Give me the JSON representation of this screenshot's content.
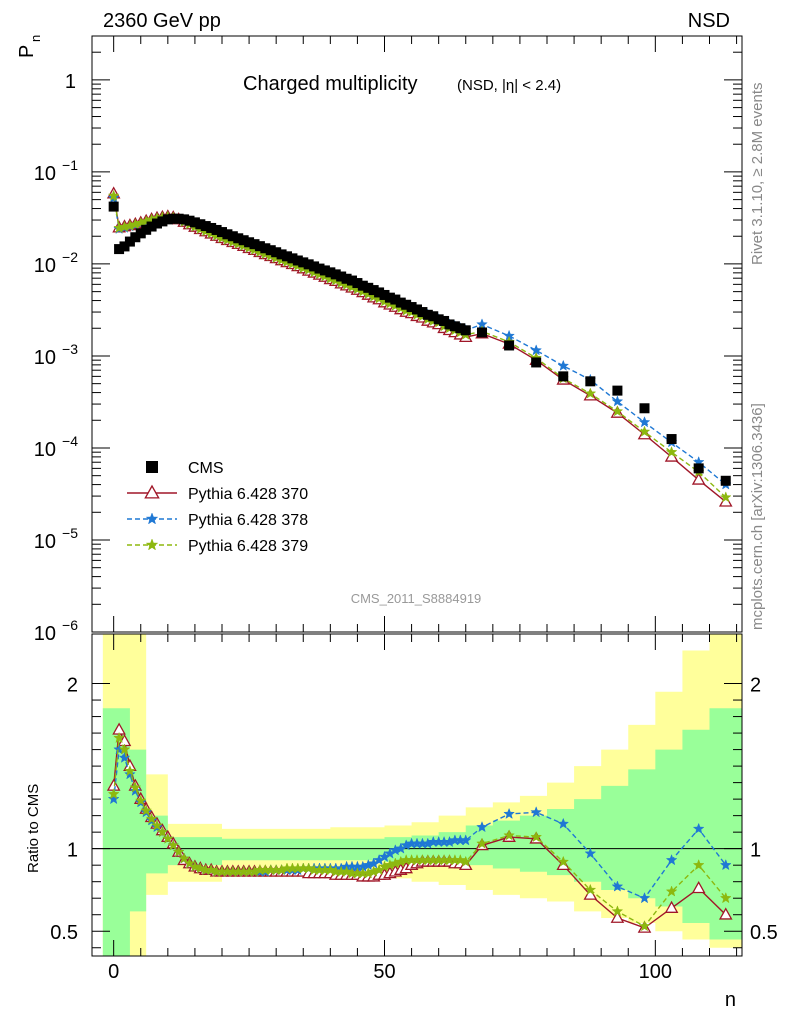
{
  "header": {
    "left": "2360 GeV pp",
    "right": "NSD"
  },
  "side_text": {
    "rivet": "Rivet 3.1.10, ≥ 2.8M events",
    "mcplots": "mcplots.cern.ch [arXiv:1306.3436]"
  },
  "chart_data": {
    "type": "scatter",
    "title": "Charged multiplicity",
    "title_sub": "(NSD, |η| < 2.4)",
    "ylabel": "P",
    "ylabel_sub": "n",
    "xlabel": "n",
    "watermark": "CMS_2011_S8884919",
    "xlim": [
      -4,
      116
    ],
    "top_log_ylim": [
      1e-06,
      3
    ],
    "ytick_labels_top": [
      {
        "base": "1",
        "exp": ""
      },
      {
        "base": "10",
        "exp": "−1"
      },
      {
        "base": "10",
        "exp": "−2"
      },
      {
        "base": "10",
        "exp": "−3"
      },
      {
        "base": "10",
        "exp": "−4"
      },
      {
        "base": "10",
        "exp": "−5"
      },
      {
        "base": "10",
        "exp": "−6"
      }
    ],
    "ytick_values_top": [
      1,
      0.1,
      0.01,
      0.001,
      0.0001,
      1e-05,
      1e-06
    ],
    "xticks": [
      0,
      50,
      100
    ],
    "xtick_labels": [
      "0",
      "50",
      "100"
    ],
    "ratio": {
      "ylabel": "Ratio to CMS",
      "ylim": [
        0.35,
        2.3
      ],
      "yticks": [
        0.5,
        1,
        2
      ],
      "ytick_labels": [
        "0.5",
        "1",
        "2"
      ],
      "band_x": [
        -2,
        3,
        6,
        10,
        20,
        30,
        40,
        50,
        55,
        60,
        65,
        70,
        75,
        80,
        85,
        90,
        95,
        100,
        105,
        110,
        116
      ],
      "band_yellow_lo": [
        0.35,
        0.35,
        0.72,
        0.8,
        0.83,
        0.83,
        0.83,
        0.82,
        0.8,
        0.78,
        0.75,
        0.72,
        0.7,
        0.68,
        0.62,
        0.58,
        0.55,
        0.5,
        0.45,
        0.4,
        0.35
      ],
      "band_yellow_hi": [
        2.3,
        2.3,
        1.45,
        1.15,
        1.12,
        1.12,
        1.13,
        1.14,
        1.16,
        1.2,
        1.25,
        1.28,
        1.32,
        1.4,
        1.5,
        1.6,
        1.75,
        1.95,
        2.2,
        2.3,
        2.3
      ],
      "band_green_lo": [
        0.35,
        0.62,
        0.85,
        0.9,
        0.93,
        0.93,
        0.93,
        0.92,
        0.92,
        0.91,
        0.9,
        0.88,
        0.86,
        0.84,
        0.8,
        0.75,
        0.7,
        0.65,
        0.55,
        0.45,
        0.35
      ],
      "band_green_hi": [
        1.85,
        1.6,
        1.2,
        1.07,
        1.06,
        1.06,
        1.06,
        1.07,
        1.08,
        1.1,
        1.14,
        1.17,
        1.2,
        1.24,
        1.3,
        1.38,
        1.48,
        1.6,
        1.72,
        1.85,
        1.85
      ]
    },
    "legend": {
      "placement": "lower-left",
      "entries": [
        "CMS",
        "Pythia 6.428 370",
        "Pythia 6.428 378",
        "Pythia 6.428 379"
      ]
    },
    "cms": {
      "name": "CMS",
      "x": [
        0,
        1,
        2,
        3,
        4,
        5,
        6,
        7,
        8,
        9,
        10,
        11,
        12,
        13,
        14,
        15,
        16,
        17,
        18,
        19,
        20,
        21,
        22,
        23,
        24,
        25,
        26,
        27,
        28,
        29,
        30,
        31,
        32,
        33,
        34,
        35,
        36,
        37,
        38,
        39,
        40,
        41,
        42,
        43,
        44,
        45,
        46,
        47,
        48,
        49,
        50,
        51,
        52,
        53,
        54,
        55,
        56,
        57,
        58,
        59,
        60,
        61,
        62,
        63,
        64,
        65,
        68,
        73,
        78,
        83,
        88,
        93,
        98,
        103,
        108,
        113
      ],
      "y": [
        0.042,
        0.0145,
        0.0155,
        0.0175,
        0.0195,
        0.0215,
        0.0235,
        0.0255,
        0.0275,
        0.029,
        0.0305,
        0.031,
        0.031,
        0.0305,
        0.0295,
        0.0283,
        0.027,
        0.0258,
        0.0246,
        0.0234,
        0.0222,
        0.021,
        0.02,
        0.019,
        0.0181,
        0.0172,
        0.0164,
        0.0156,
        0.0148,
        0.0141,
        0.0134,
        0.0127,
        0.0121,
        0.0115,
        0.0109,
        0.0104,
        0.0099,
        0.0094,
        0.0089,
        0.0085,
        0.0081,
        0.0077,
        0.0073,
        0.0069,
        0.0066,
        0.0062,
        0.0058,
        0.0055,
        0.0052,
        0.0049,
        0.0046,
        0.0043,
        0.0041,
        0.0038,
        0.0036,
        0.0034,
        0.0032,
        0.003,
        0.0028,
        0.0027,
        0.0025,
        0.0024,
        0.0022,
        0.0021,
        0.002,
        0.0019,
        0.0018,
        0.0013,
        0.00085,
        0.0006,
        0.00053,
        0.00042,
        0.00027,
        0.000125,
        6e-05,
        4.4e-05
      ]
    },
    "series": [
      {
        "name": "Pythia 6.428 370",
        "color": "#a01728",
        "style": "solid",
        "marker": "triangle-open",
        "x": [
          0,
          1,
          2,
          3,
          4,
          5,
          6,
          7,
          8,
          9,
          10,
          11,
          12,
          13,
          14,
          15,
          16,
          17,
          18,
          19,
          20,
          21,
          22,
          23,
          24,
          25,
          26,
          27,
          28,
          29,
          30,
          31,
          32,
          33,
          34,
          35,
          36,
          37,
          38,
          39,
          40,
          41,
          42,
          43,
          44,
          45,
          46,
          47,
          48,
          49,
          50,
          51,
          52,
          53,
          54,
          55,
          56,
          57,
          58,
          59,
          60,
          61,
          62,
          63,
          64,
          65,
          68,
          73,
          78,
          83,
          88,
          93,
          98,
          103,
          108,
          113
        ],
        "y": [
          0.058,
          0.0248,
          0.0255,
          0.0262,
          0.027,
          0.028,
          0.0292,
          0.0305,
          0.0315,
          0.0322,
          0.0327,
          0.032,
          0.0304,
          0.0285,
          0.0268,
          0.0252,
          0.0238,
          0.0225,
          0.0213,
          0.0201,
          0.019,
          0.0181,
          0.0172,
          0.0164,
          0.0156,
          0.0148,
          0.0141,
          0.0134,
          0.0127,
          0.0121,
          0.0115,
          0.0109,
          0.0104,
          0.0099,
          0.0094,
          0.0089,
          0.0084,
          0.008,
          0.0076,
          0.0072,
          0.0068,
          0.0065,
          0.0061,
          0.0058,
          0.0055,
          0.0052,
          0.0049,
          0.0046,
          0.0043,
          0.0041,
          0.0038,
          0.0036,
          0.0034,
          0.0032,
          0.003,
          0.0029,
          0.0027,
          0.0026,
          0.0024,
          0.0023,
          0.0022,
          0.002,
          0.0019,
          0.0018,
          0.0017,
          0.0016,
          0.00175,
          0.00135,
          0.0009,
          0.00055,
          0.00037,
          0.00024,
          0.00014,
          8e-05,
          4.5e-05,
          2.6e-05
        ],
        "ratio": [
          1.38,
          1.72,
          1.65,
          1.5,
          1.38,
          1.3,
          1.24,
          1.19,
          1.15,
          1.11,
          1.07,
          1.03,
          0.98,
          0.93,
          0.91,
          0.89,
          0.88,
          0.87,
          0.87,
          0.86,
          0.86,
          0.86,
          0.86,
          0.86,
          0.86,
          0.86,
          0.86,
          0.86,
          0.86,
          0.86,
          0.86,
          0.86,
          0.86,
          0.86,
          0.86,
          0.86,
          0.85,
          0.85,
          0.85,
          0.85,
          0.85,
          0.84,
          0.84,
          0.84,
          0.84,
          0.84,
          0.83,
          0.83,
          0.83,
          0.84,
          0.84,
          0.85,
          0.86,
          0.87,
          0.88,
          0.9,
          0.91,
          0.92,
          0.92,
          0.92,
          0.92,
          0.92,
          0.92,
          0.91,
          0.91,
          0.9,
          1.02,
          1.07,
          1.06,
          0.9,
          0.72,
          0.58,
          0.52,
          0.64,
          0.76,
          0.6
        ]
      },
      {
        "name": "Pythia 6.428 378",
        "color": "#1f78d4",
        "style": "dashed",
        "marker": "star",
        "x": [
          0,
          1,
          2,
          3,
          4,
          5,
          6,
          7,
          8,
          9,
          10,
          11,
          12,
          13,
          14,
          15,
          16,
          17,
          18,
          19,
          20,
          21,
          22,
          23,
          24,
          25,
          26,
          27,
          28,
          29,
          30,
          31,
          32,
          33,
          34,
          35,
          36,
          37,
          38,
          39,
          40,
          41,
          42,
          43,
          44,
          45,
          46,
          47,
          48,
          49,
          50,
          51,
          52,
          53,
          54,
          55,
          56,
          57,
          58,
          59,
          60,
          61,
          62,
          63,
          64,
          65,
          68,
          73,
          78,
          83,
          88,
          93,
          98,
          103,
          108,
          113
        ],
        "y": [
          0.052,
          0.024,
          0.0247,
          0.0255,
          0.0264,
          0.0275,
          0.0287,
          0.03,
          0.0312,
          0.032,
          0.0325,
          0.0318,
          0.0303,
          0.0286,
          0.027,
          0.0254,
          0.024,
          0.0227,
          0.0215,
          0.0203,
          0.0192,
          0.0183,
          0.0174,
          0.0166,
          0.0158,
          0.015,
          0.0143,
          0.0136,
          0.0129,
          0.0123,
          0.0117,
          0.0111,
          0.0106,
          0.0101,
          0.0096,
          0.0091,
          0.0087,
          0.0082,
          0.0078,
          0.0074,
          0.0071,
          0.0067,
          0.0064,
          0.0061,
          0.0058,
          0.0055,
          0.0052,
          0.0049,
          0.0046,
          0.0044,
          0.0042,
          0.004,
          0.0038,
          0.0036,
          0.0034,
          0.0032,
          0.0031,
          0.0029,
          0.0028,
          0.0026,
          0.0025,
          0.0023,
          0.0022,
          0.0021,
          0.002,
          0.0019,
          0.0022,
          0.00165,
          0.00115,
          0.00078,
          0.00055,
          0.00032,
          0.00019,
          0.000115,
          7e-05,
          4e-05
        ],
        "ratio": [
          1.3,
          1.6,
          1.55,
          1.45,
          1.35,
          1.28,
          1.22,
          1.17,
          1.13,
          1.1,
          1.06,
          1.02,
          0.98,
          0.94,
          0.91,
          0.89,
          0.88,
          0.87,
          0.87,
          0.86,
          0.86,
          0.86,
          0.86,
          0.86,
          0.86,
          0.86,
          0.86,
          0.86,
          0.86,
          0.87,
          0.87,
          0.87,
          0.87,
          0.87,
          0.87,
          0.88,
          0.88,
          0.88,
          0.88,
          0.88,
          0.88,
          0.88,
          0.88,
          0.89,
          0.89,
          0.89,
          0.89,
          0.9,
          0.91,
          0.93,
          0.95,
          0.97,
          0.99,
          1.0,
          1.02,
          1.03,
          1.03,
          1.03,
          1.03,
          1.04,
          1.04,
          1.04,
          1.04,
          1.05,
          1.05,
          1.05,
          1.13,
          1.21,
          1.22,
          1.15,
          0.97,
          0.77,
          0.7,
          0.93,
          1.12,
          0.9
        ]
      },
      {
        "name": "Pythia 6.428 379",
        "color": "#8db80f",
        "style": "dashed",
        "marker": "star",
        "x": [
          0,
          1,
          2,
          3,
          4,
          5,
          6,
          7,
          8,
          9,
          10,
          11,
          12,
          13,
          14,
          15,
          16,
          17,
          18,
          19,
          20,
          21,
          22,
          23,
          24,
          25,
          26,
          27,
          28,
          29,
          30,
          31,
          32,
          33,
          34,
          35,
          36,
          37,
          38,
          39,
          40,
          41,
          42,
          43,
          44,
          45,
          46,
          47,
          48,
          49,
          50,
          51,
          52,
          53,
          54,
          55,
          56,
          57,
          58,
          59,
          60,
          61,
          62,
          63,
          64,
          65,
          68,
          73,
          78,
          83,
          88,
          93,
          98,
          103,
          108,
          113
        ],
        "y": [
          0.055,
          0.0245,
          0.0252,
          0.0259,
          0.0268,
          0.0278,
          0.029,
          0.0303,
          0.0313,
          0.0321,
          0.0326,
          0.0319,
          0.0304,
          0.0286,
          0.0269,
          0.0253,
          0.0239,
          0.0226,
          0.0214,
          0.0202,
          0.0191,
          0.0182,
          0.0173,
          0.0165,
          0.0157,
          0.0149,
          0.0142,
          0.0135,
          0.0128,
          0.0122,
          0.0116,
          0.011,
          0.0105,
          0.01,
          0.0095,
          0.009,
          0.0086,
          0.0081,
          0.0077,
          0.0073,
          0.0069,
          0.0066,
          0.0062,
          0.0059,
          0.0056,
          0.0053,
          0.005,
          0.0047,
          0.0044,
          0.0042,
          0.0039,
          0.0037,
          0.0035,
          0.0033,
          0.0031,
          0.003,
          0.0028,
          0.0027,
          0.0025,
          0.0024,
          0.0023,
          0.0021,
          0.002,
          0.0019,
          0.0018,
          0.0017,
          0.00185,
          0.00142,
          0.00095,
          0.00057,
          0.00039,
          0.00025,
          0.00015,
          9e-05,
          5.5e-05,
          2.9e-05
        ],
        "ratio": [
          1.33,
          1.67,
          1.6,
          1.47,
          1.37,
          1.29,
          1.23,
          1.18,
          1.14,
          1.1,
          1.06,
          1.02,
          0.98,
          0.94,
          0.91,
          0.89,
          0.88,
          0.87,
          0.87,
          0.86,
          0.86,
          0.86,
          0.86,
          0.86,
          0.86,
          0.86,
          0.86,
          0.87,
          0.87,
          0.87,
          0.87,
          0.87,
          0.88,
          0.88,
          0.88,
          0.88,
          0.88,
          0.87,
          0.87,
          0.87,
          0.87,
          0.86,
          0.86,
          0.86,
          0.85,
          0.85,
          0.85,
          0.85,
          0.86,
          0.87,
          0.89,
          0.9,
          0.91,
          0.92,
          0.93,
          0.93,
          0.93,
          0.93,
          0.93,
          0.93,
          0.93,
          0.93,
          0.93,
          0.93,
          0.93,
          0.92,
          1.03,
          1.08,
          1.07,
          0.92,
          0.75,
          0.62,
          0.53,
          0.74,
          0.9,
          0.7
        ]
      }
    ]
  }
}
